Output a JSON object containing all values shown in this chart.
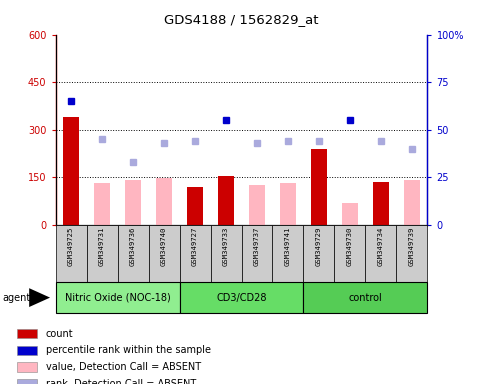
{
  "title": "GDS4188 / 1562829_at",
  "samples": [
    "GSM349725",
    "GSM349731",
    "GSM349736",
    "GSM349740",
    "GSM349727",
    "GSM349733",
    "GSM349737",
    "GSM349741",
    "GSM349729",
    "GSM349730",
    "GSM349734",
    "GSM349739"
  ],
  "groups": [
    {
      "name": "Nitric Oxide (NOC-18)",
      "start": 0,
      "end": 4,
      "color": "#90EE90"
    },
    {
      "name": "CD3/CD28",
      "start": 4,
      "end": 8,
      "color": "#66DD66"
    },
    {
      "name": "control",
      "start": 8,
      "end": 12,
      "color": "#55CC55"
    }
  ],
  "count_values": [
    340,
    0,
    0,
    0,
    120,
    155,
    0,
    0,
    240,
    0,
    135,
    0
  ],
  "count_absent_values": [
    0,
    130,
    140,
    148,
    0,
    0,
    125,
    132,
    0,
    68,
    0,
    140
  ],
  "percentile_rank_present": [
    65,
    0,
    0,
    0,
    0,
    55,
    0,
    0,
    0,
    55,
    0,
    0
  ],
  "percentile_rank_absent": [
    0,
    45,
    33,
    43,
    44,
    0,
    43,
    44,
    44,
    0,
    44,
    40
  ],
  "ylim_left": [
    0,
    600
  ],
  "ylim_right": [
    0,
    100
  ],
  "yticks_left": [
    0,
    150,
    300,
    450,
    600
  ],
  "ytick_labels_left": [
    "0",
    "150",
    "300",
    "450",
    "600"
  ],
  "ytick_labels_right": [
    "0",
    "25",
    "50",
    "75",
    "100%"
  ],
  "left_axis_color": "#CC0000",
  "right_axis_color": "#0000CC",
  "bar_color_count": "#CC0000",
  "bar_color_absent": "#FFB6C1",
  "dot_color_rank": "#0000CC",
  "dot_color_rank_absent": "#AAAADD",
  "agent_label": "agent",
  "legend_items": [
    {
      "color": "#CC0000",
      "label": "count",
      "marker": "square"
    },
    {
      "color": "#0000CC",
      "label": "percentile rank within the sample",
      "marker": "square"
    },
    {
      "color": "#FFB6C1",
      "label": "value, Detection Call = ABSENT",
      "marker": "square"
    },
    {
      "color": "#AAAADD",
      "label": "rank, Detection Call = ABSENT",
      "marker": "square"
    }
  ],
  "hgrid_vals": [
    150,
    300,
    450
  ],
  "bar_width": 0.5
}
